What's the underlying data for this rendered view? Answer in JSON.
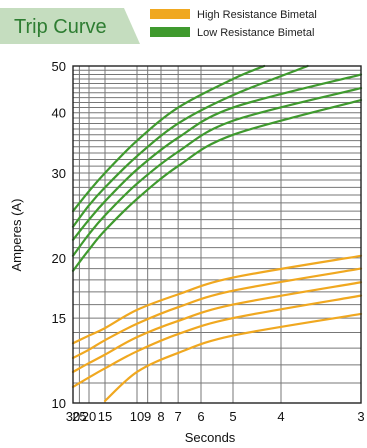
{
  "chart_data": {
    "type": "line",
    "title": "Trip Curve",
    "xlabel": "Seconds",
    "ylabel": "Amperes (A)",
    "x_scale": "reciprocal",
    "y_scale": "log",
    "xlim": [
      30,
      3
    ],
    "ylim": [
      10,
      50
    ],
    "x_ticks": [
      30,
      25,
      20,
      15,
      10,
      9,
      8,
      7,
      6,
      5,
      4,
      3
    ],
    "x_tick_labels": [
      "30",
      "25",
      "20",
      "15",
      "10",
      "9",
      "8",
      "7",
      "6",
      "5",
      "4",
      "3"
    ],
    "y_ticks": [
      10,
      15,
      20,
      30,
      40,
      50
    ],
    "y_tick_labels": [
      "10",
      "15",
      "20",
      "30",
      "40",
      "50"
    ],
    "grid": true,
    "legend": {
      "placement": "top-right",
      "entries": [
        {
          "label": "High Resistance Bimetal",
          "color": "#f0a820"
        },
        {
          "label": "Low Resistance Bimetal",
          "color": "#3f9a2e"
        }
      ]
    },
    "colors": {
      "high": "#f0a820",
      "low": "#3f9a2e",
      "title_tab": "#c5ddbf",
      "title_text": "#2e7d32"
    },
    "series": [
      {
        "group": "Low Resistance Bimetal",
        "color": "#3f9a2e",
        "points": [
          [
            30,
            25.0
          ],
          [
            20,
            27.5
          ],
          [
            15,
            30.0
          ],
          [
            10,
            35.0
          ],
          [
            7,
            41.0
          ],
          [
            5,
            47.0
          ],
          [
            4.3,
            50.0
          ]
        ]
      },
      {
        "group": "Low Resistance Bimetal",
        "color": "#3f9a2e",
        "points": [
          [
            30,
            23.2
          ],
          [
            20,
            25.7
          ],
          [
            15,
            28.0
          ],
          [
            10,
            32.5
          ],
          [
            7,
            38.0
          ],
          [
            5,
            43.5
          ],
          [
            3.6,
            50.0
          ]
        ]
      },
      {
        "group": "Low Resistance Bimetal",
        "color": "#3f9a2e",
        "points": [
          [
            30,
            21.8
          ],
          [
            20,
            24.0
          ],
          [
            15,
            26.2
          ],
          [
            10,
            30.5
          ],
          [
            7,
            35.5
          ],
          [
            5,
            41.0
          ],
          [
            3,
            48.0
          ]
        ]
      },
      {
        "group": "Low Resistance Bimetal",
        "color": "#3f9a2e",
        "points": [
          [
            30,
            20.2
          ],
          [
            20,
            22.4
          ],
          [
            15,
            24.5
          ],
          [
            10,
            28.5
          ],
          [
            7,
            33.2
          ],
          [
            5,
            38.5
          ],
          [
            3,
            45.0
          ]
        ]
      },
      {
        "group": "Low Resistance Bimetal",
        "color": "#3f9a2e",
        "points": [
          [
            30,
            18.8
          ],
          [
            20,
            20.8
          ],
          [
            15,
            22.8
          ],
          [
            10,
            26.5
          ],
          [
            7,
            31.0
          ],
          [
            5,
            36.0
          ],
          [
            3,
            42.5
          ]
        ]
      },
      {
        "group": "High Resistance Bimetal",
        "color": "#f0a820",
        "points": [
          [
            30,
            13.3
          ],
          [
            20,
            13.8
          ],
          [
            15,
            14.3
          ],
          [
            10,
            15.6
          ],
          [
            7,
            16.8
          ],
          [
            5,
            18.2
          ],
          [
            3,
            20.2
          ]
        ]
      },
      {
        "group": "High Resistance Bimetal",
        "color": "#f0a820",
        "points": [
          [
            30,
            12.4
          ],
          [
            20,
            12.9
          ],
          [
            15,
            13.5
          ],
          [
            10,
            14.6
          ],
          [
            7,
            15.8
          ],
          [
            5,
            17.1
          ],
          [
            3,
            19.0
          ]
        ]
      },
      {
        "group": "High Resistance Bimetal",
        "color": "#f0a820",
        "points": [
          [
            30,
            11.6
          ],
          [
            20,
            12.1
          ],
          [
            15,
            12.6
          ],
          [
            10,
            13.7
          ],
          [
            7,
            14.8
          ],
          [
            5,
            16.0
          ],
          [
            3,
            17.8
          ]
        ]
      },
      {
        "group": "High Resistance Bimetal",
        "color": "#f0a820",
        "points": [
          [
            30,
            10.8
          ],
          [
            20,
            11.3
          ],
          [
            15,
            11.8
          ],
          [
            10,
            12.8
          ],
          [
            7,
            13.9
          ],
          [
            5,
            15.0
          ],
          [
            3,
            16.7
          ]
        ]
      },
      {
        "group": "High Resistance Bimetal",
        "color": "#f0a820",
        "points": [
          [
            15,
            10.1
          ],
          [
            10,
            11.6
          ],
          [
            7,
            12.7
          ],
          [
            5,
            13.8
          ],
          [
            3,
            15.3
          ]
        ]
      }
    ]
  }
}
